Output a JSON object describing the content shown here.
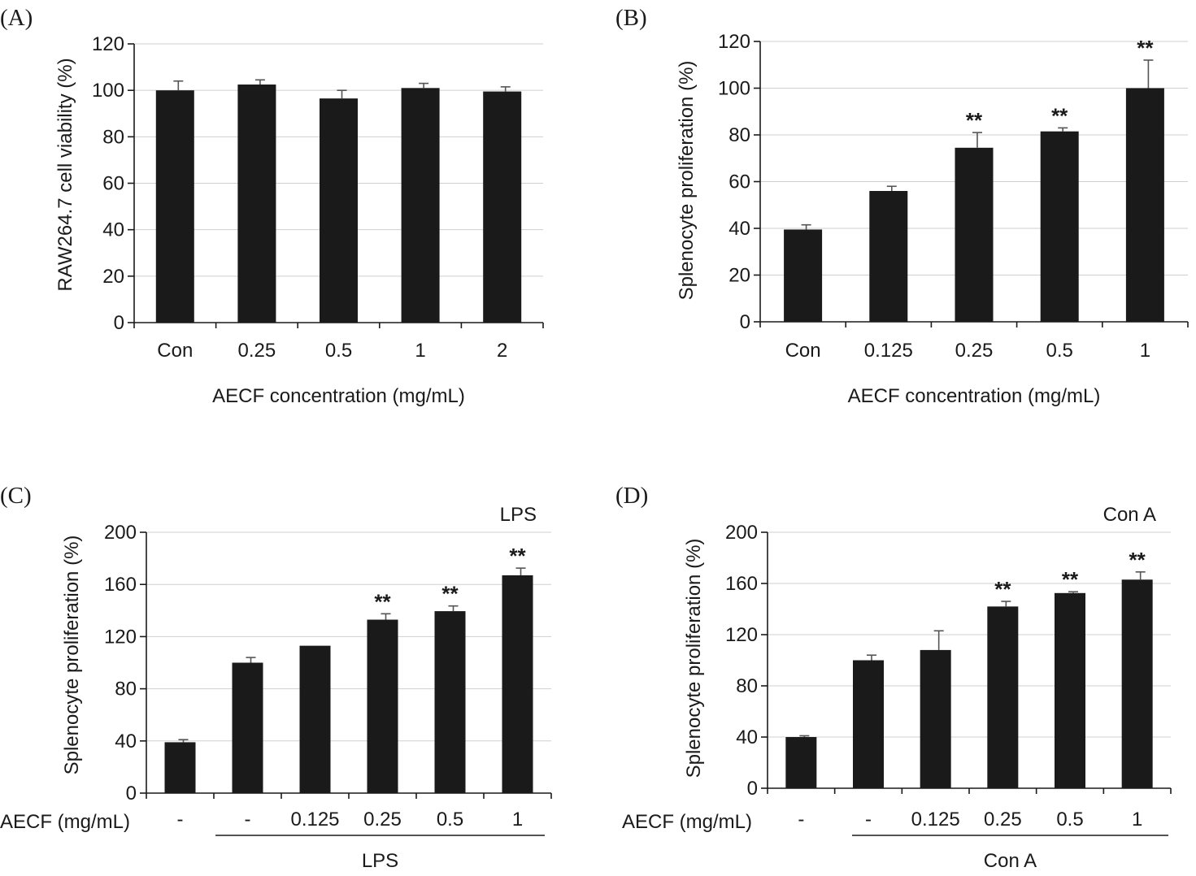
{
  "chart_data": [
    {
      "panel": "(A)",
      "type": "bar",
      "categories": [
        "Con",
        "0.25",
        "0.5",
        "1",
        "2"
      ],
      "values": [
        100,
        102.5,
        96.5,
        101,
        99.5
      ],
      "errors": [
        4,
        2,
        3.5,
        2,
        2
      ],
      "significance": [
        "",
        "",
        "",
        "",
        ""
      ],
      "ylabel": "RAW264.7 cell viability (%)",
      "xlabel": "AECF concentration (mg/mL)",
      "ylim": [
        0,
        120
      ],
      "yticks": [
        "0",
        "20",
        "40",
        "60",
        "80",
        "100",
        "120"
      ],
      "grid": true,
      "condition_label": "",
      "treatment_title": "",
      "group_label": ""
    },
    {
      "panel": "(B)",
      "type": "bar",
      "categories": [
        "Con",
        "0.125",
        "0.25",
        "0.5",
        "1"
      ],
      "values": [
        39.5,
        56,
        74.5,
        81.5,
        100
      ],
      "errors": [
        2,
        2,
        6.5,
        1.5,
        12
      ],
      "significance": [
        "",
        "",
        "**",
        "**",
        "**"
      ],
      "ylabel": "Splenocyte proliferation (%)",
      "xlabel": "AECF concentration (mg/mL)",
      "ylim": [
        0,
        120
      ],
      "yticks": [
        "0",
        "20",
        "40",
        "60",
        "80",
        "100",
        "120"
      ],
      "grid": true,
      "condition_label": "",
      "treatment_title": "",
      "group_label": ""
    },
    {
      "panel": "(C)",
      "type": "bar",
      "categories": [
        "-",
        "-",
        "0.125",
        "0.25",
        "0.5",
        "1"
      ],
      "values": [
        39,
        100,
        113,
        133,
        139.5,
        167
      ],
      "errors": [
        2,
        4,
        0,
        4.5,
        4,
        5.5
      ],
      "significance": [
        "",
        "",
        "",
        "**",
        "**",
        "**"
      ],
      "ylabel": "Splenocyte proliferation (%)",
      "xlabel": "",
      "ylim": [
        0,
        200
      ],
      "yticks": [
        "0",
        "40",
        "80",
        "120",
        "160",
        "200"
      ],
      "grid": true,
      "condition_label": "LPS",
      "treatment_title": "AECF (mg/mL)",
      "group_label": "LPS"
    },
    {
      "panel": "(D)",
      "type": "bar",
      "categories": [
        "-",
        "-",
        "0.125",
        "0.25",
        "0.5",
        "1"
      ],
      "values": [
        40,
        100,
        108,
        142,
        152.5,
        163
      ],
      "errors": [
        1,
        4,
        15,
        4,
        1,
        6
      ],
      "significance": [
        "",
        "",
        "",
        "**",
        "**",
        "**"
      ],
      "ylabel": "Splenocyte proliferation (%)",
      "xlabel": "",
      "ylim": [
        0,
        200
      ],
      "yticks": [
        "0",
        "40",
        "80",
        "120",
        "160",
        "200"
      ],
      "grid": true,
      "condition_label": "Con A",
      "treatment_title": "AECF (mg/mL)",
      "group_label": "Con A"
    }
  ]
}
